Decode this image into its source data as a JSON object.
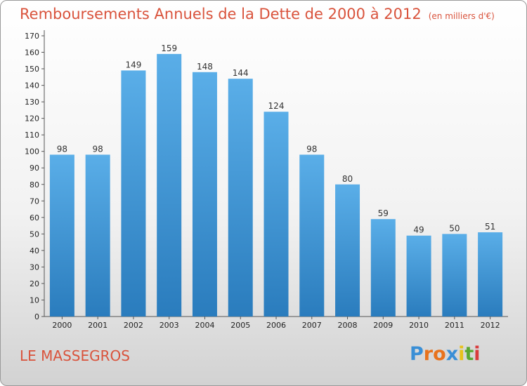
{
  "header": {
    "title": "Remboursements Annuels de la Dette de 2000 à 2012",
    "subtitle": "(en milliers d'€)"
  },
  "footer": {
    "location": "LE MASSEGROS",
    "logo_text": "Proxiti"
  },
  "colors": {
    "title": "#d9533c",
    "bar_light": "#5aaee8",
    "bar_dark": "#2a7cbd",
    "logo": [
      "#3a8fd6",
      "#e8721c",
      "#e8721c",
      "#3a8fd6",
      "#e8c21c",
      "#5aa832",
      "#d93c3c"
    ]
  },
  "chart_data": {
    "type": "bar",
    "categories": [
      "2000",
      "2001",
      "2002",
      "2003",
      "2004",
      "2005",
      "2006",
      "2007",
      "2008",
      "2009",
      "2010",
      "2011",
      "2012"
    ],
    "values": [
      98,
      98,
      149,
      159,
      148,
      144,
      124,
      98,
      80,
      59,
      49,
      50,
      51
    ],
    "ylim": [
      0,
      170
    ],
    "yticks": [
      0,
      10,
      20,
      30,
      40,
      50,
      60,
      70,
      80,
      90,
      100,
      110,
      120,
      130,
      140,
      150,
      160,
      170
    ],
    "grid": false,
    "legend": "none"
  }
}
